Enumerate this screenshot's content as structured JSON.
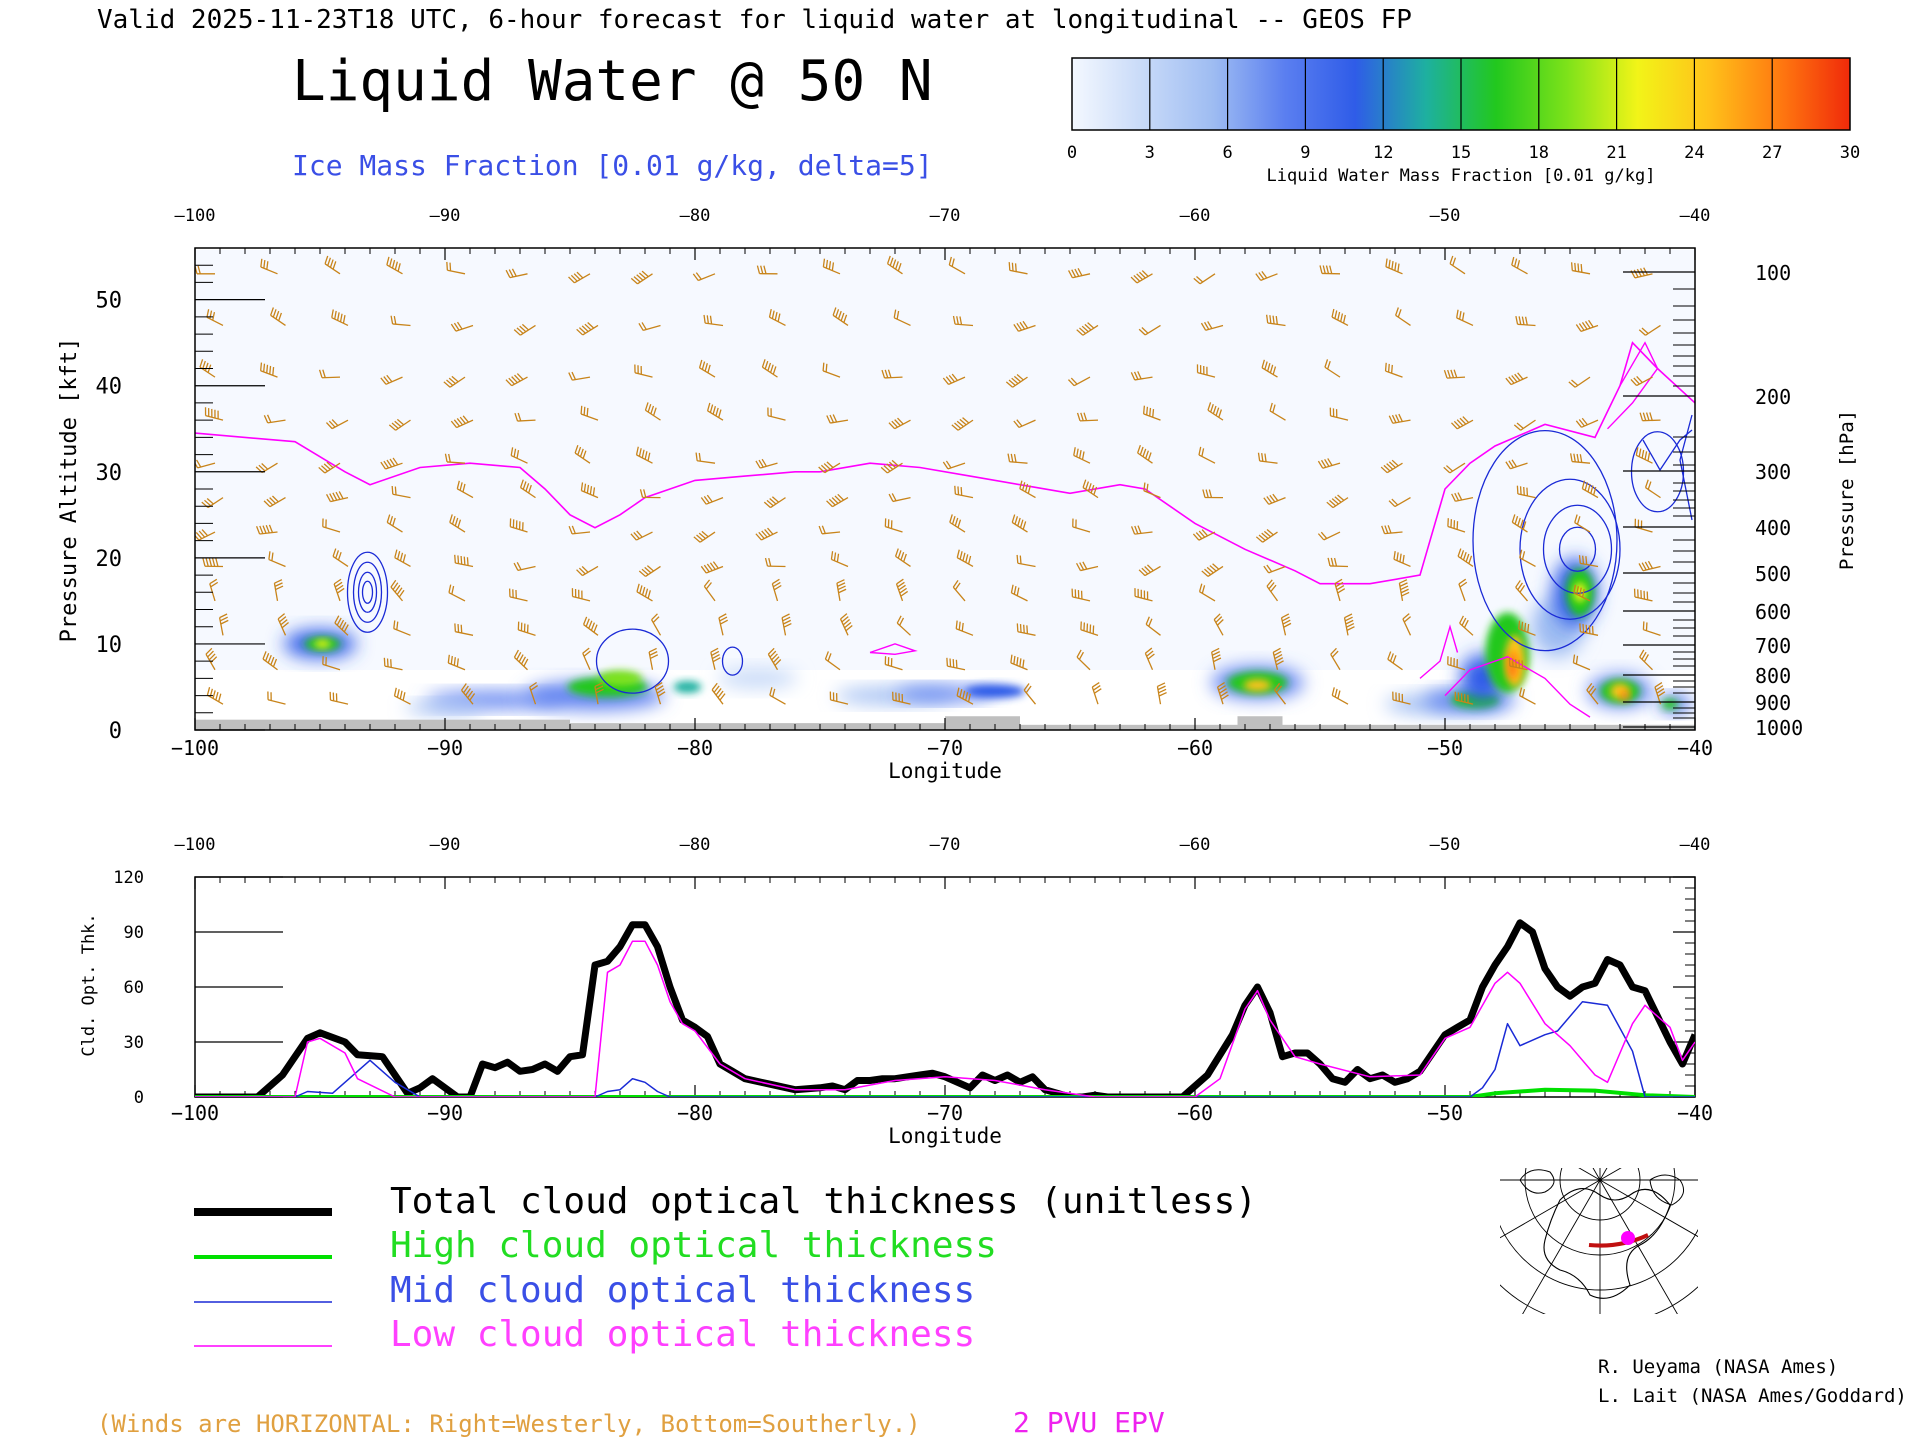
{
  "header": {
    "valid_line": "Valid 2025-11-23T18 UTC, 6-hour forecast for liquid water at longitudinal -- GEOS FP",
    "title": "Liquid Water @ 50 N",
    "subtitle": "Ice Mass Fraction [0.01 g/kg, delta=5]"
  },
  "colorbar": {
    "label": "Liquid Water Mass Fraction [0.01 g/kg]",
    "ticks": [
      "0",
      "3",
      "6",
      "9",
      "12",
      "15",
      "18",
      "21",
      "24",
      "27",
      "30"
    ],
    "colors": [
      "#f4f8ff",
      "#c8daf8",
      "#9ebcf2",
      "#5b7ff0",
      "#2f5ce8",
      "#1eb0a0",
      "#22c81e",
      "#7de21a",
      "#f2f418",
      "#ffc21a",
      "#ff7a10",
      "#f02a0a"
    ]
  },
  "top_chart": {
    "xlabel": "Longitude",
    "ylabel_left": "Pressure Altitude [kft]",
    "ylabel_right": "Pressure [hPa]",
    "x_ticks": [
      "−100",
      "−90",
      "−80",
      "−70",
      "−60",
      "−50",
      "−40"
    ],
    "y_ticks": [
      "0",
      "10",
      "20",
      "30",
      "40",
      "50"
    ],
    "pressure_ticks": [
      "100",
      "200",
      "300",
      "400",
      "500",
      "600",
      "700",
      "800",
      "900",
      "1000"
    ],
    "x_range": [
      -100,
      -40
    ],
    "y_range": [
      0,
      56
    ],
    "terrain_color": "#bfbfbf",
    "epv_color": "#ff00ff",
    "ice_color": "#1a2ad6",
    "barb_color": "#c8841a"
  },
  "bottom_chart": {
    "xlabel": "Longitude",
    "ylabel": "Cld. Opt. Thk.",
    "x_ticks": [
      "−100",
      "−90",
      "−80",
      "−70",
      "−60",
      "−50",
      "−40"
    ],
    "y_ticks": [
      "0",
      "30",
      "60",
      "90",
      "120"
    ],
    "x_range": [
      -100,
      -40
    ],
    "y_range": [
      0,
      120
    ]
  },
  "chart_data": {
    "type": "line",
    "xlabel": "Longitude",
    "ylabel": "Cld. Opt. Thk.",
    "xlim": [
      -100,
      -40
    ],
    "ylim": [
      0,
      120
    ],
    "series": [
      {
        "name": "Total cloud optical thickness (unitless)",
        "color": "#000000",
        "points": [
          [
            -100,
            0
          ],
          [
            -97.5,
            0
          ],
          [
            -96.5,
            12
          ],
          [
            -95.5,
            32
          ],
          [
            -95,
            35
          ],
          [
            -94,
            30
          ],
          [
            -93.5,
            23
          ],
          [
            -92.5,
            22
          ],
          [
            -92,
            12
          ],
          [
            -91.5,
            2
          ],
          [
            -91,
            5
          ],
          [
            -90.5,
            10
          ],
          [
            -90,
            5
          ],
          [
            -89.5,
            0
          ],
          [
            -89,
            0
          ],
          [
            -88.5,
            18
          ],
          [
            -88,
            16
          ],
          [
            -87.5,
            19
          ],
          [
            -87,
            14
          ],
          [
            -86.5,
            15
          ],
          [
            -86,
            18
          ],
          [
            -85.5,
            14
          ],
          [
            -85,
            22
          ],
          [
            -84.5,
            23
          ],
          [
            -84,
            72
          ],
          [
            -83.5,
            74
          ],
          [
            -83,
            82
          ],
          [
            -82.5,
            94
          ],
          [
            -82,
            94
          ],
          [
            -81.5,
            82
          ],
          [
            -81,
            60
          ],
          [
            -80.5,
            42
          ],
          [
            -80,
            38
          ],
          [
            -79.5,
            33
          ],
          [
            -79,
            18
          ],
          [
            -78.5,
            14
          ],
          [
            -78,
            10
          ],
          [
            -77,
            7
          ],
          [
            -76,
            4
          ],
          [
            -75,
            5
          ],
          [
            -74.5,
            6
          ],
          [
            -74,
            4
          ],
          [
            -73.5,
            9
          ],
          [
            -73,
            9
          ],
          [
            -72.5,
            10
          ],
          [
            -72,
            10
          ],
          [
            -71.5,
            11
          ],
          [
            -71,
            12
          ],
          [
            -70.5,
            13
          ],
          [
            -70,
            11
          ],
          [
            -69.5,
            8
          ],
          [
            -69,
            5
          ],
          [
            -68.5,
            12
          ],
          [
            -68,
            9
          ],
          [
            -67.5,
            12
          ],
          [
            -67,
            8
          ],
          [
            -66.5,
            11
          ],
          [
            -66,
            4
          ],
          [
            -65,
            0
          ],
          [
            -64.5,
            0
          ],
          [
            -64,
            1
          ],
          [
            -63.5,
            0
          ],
          [
            -60.5,
            0
          ],
          [
            -59.5,
            12
          ],
          [
            -58.5,
            34
          ],
          [
            -58,
            50
          ],
          [
            -57.5,
            60
          ],
          [
            -57,
            46
          ],
          [
            -56.5,
            22
          ],
          [
            -56,
            24
          ],
          [
            -55.5,
            24
          ],
          [
            -55,
            18
          ],
          [
            -54.5,
            10
          ],
          [
            -54,
            8
          ],
          [
            -53.5,
            15
          ],
          [
            -53,
            10
          ],
          [
            -52.5,
            12
          ],
          [
            -52,
            8
          ],
          [
            -51.5,
            10
          ],
          [
            -51,
            14
          ],
          [
            -50.5,
            24
          ],
          [
            -50,
            34
          ],
          [
            -49.5,
            38
          ],
          [
            -49,
            42
          ],
          [
            -48.5,
            60
          ],
          [
            -48,
            72
          ],
          [
            -47.5,
            82
          ],
          [
            -47,
            95
          ],
          [
            -46.5,
            90
          ],
          [
            -46,
            70
          ],
          [
            -45.5,
            60
          ],
          [
            -45,
            55
          ],
          [
            -44.5,
            60
          ],
          [
            -44,
            62
          ],
          [
            -43.5,
            75
          ],
          [
            -43,
            72
          ],
          [
            -42.5,
            60
          ],
          [
            -42,
            58
          ],
          [
            -41.5,
            44
          ],
          [
            -41,
            30
          ],
          [
            -40.5,
            18
          ],
          [
            -40,
            34
          ]
        ]
      },
      {
        "name": "High cloud optical thickness",
        "color": "#00e000",
        "points": [
          [
            -100,
            0
          ],
          [
            -49,
            0
          ],
          [
            -48,
            2
          ],
          [
            -47,
            3
          ],
          [
            -46,
            4
          ],
          [
            -44,
            3.5
          ],
          [
            -42,
            1
          ],
          [
            -40,
            0
          ]
        ]
      },
      {
        "name": "Mid cloud optical thickness",
        "color": "#1a2ad6",
        "points": [
          [
            -100,
            0
          ],
          [
            -96,
            0
          ],
          [
            -95.5,
            3
          ],
          [
            -94.5,
            2
          ],
          [
            -93,
            20
          ],
          [
            -92,
            8
          ],
          [
            -91,
            0
          ],
          [
            -84,
            0
          ],
          [
            -83.5,
            3
          ],
          [
            -83,
            4
          ],
          [
            -82.5,
            10
          ],
          [
            -82,
            8
          ],
          [
            -81.5,
            3
          ],
          [
            -81,
            0
          ],
          [
            -49,
            0
          ],
          [
            -48.5,
            5
          ],
          [
            -48,
            15
          ],
          [
            -47.5,
            40
          ],
          [
            -47,
            28
          ],
          [
            -46,
            34
          ],
          [
            -45.5,
            36
          ],
          [
            -44.5,
            52
          ],
          [
            -43.5,
            50
          ],
          [
            -42.5,
            25
          ],
          [
            -42,
            0
          ],
          [
            -40,
            0
          ]
        ]
      },
      {
        "name": "Low cloud optical thickness",
        "color": "#ff00ff",
        "points": [
          [
            -100,
            0
          ],
          [
            -96,
            0
          ],
          [
            -95.5,
            30
          ],
          [
            -95,
            32
          ],
          [
            -94,
            24
          ],
          [
            -93.5,
            10
          ],
          [
            -92,
            0
          ],
          [
            -84,
            0
          ],
          [
            -83.5,
            68
          ],
          [
            -83,
            72
          ],
          [
            -82.5,
            85
          ],
          [
            -82,
            85
          ],
          [
            -81.5,
            72
          ],
          [
            -81,
            52
          ],
          [
            -80.5,
            40
          ],
          [
            -80,
            36
          ],
          [
            -79,
            18
          ],
          [
            -78,
            10
          ],
          [
            -76,
            4
          ],
          [
            -74,
            4
          ],
          [
            -72,
            9
          ],
          [
            -70,
            11
          ],
          [
            -68,
            9
          ],
          [
            -66,
            4
          ],
          [
            -64,
            0
          ],
          [
            -60,
            0
          ],
          [
            -59,
            10
          ],
          [
            -58,
            48
          ],
          [
            -57.5,
            58
          ],
          [
            -57,
            42
          ],
          [
            -56,
            22
          ],
          [
            -55,
            18
          ],
          [
            -53,
            11
          ],
          [
            -51,
            12
          ],
          [
            -50,
            32
          ],
          [
            -49,
            38
          ],
          [
            -48,
            62
          ],
          [
            -47.5,
            68
          ],
          [
            -47,
            62
          ],
          [
            -46,
            40
          ],
          [
            -45,
            28
          ],
          [
            -44,
            12
          ],
          [
            -43.5,
            8
          ],
          [
            -43,
            24
          ],
          [
            -42.5,
            40
          ],
          [
            -42,
            50
          ],
          [
            -41,
            38
          ],
          [
            -40.5,
            20
          ],
          [
            -40,
            30
          ]
        ]
      }
    ]
  },
  "legend": {
    "items": [
      {
        "label": "Total cloud optical thickness (unitless)",
        "color": "#000000",
        "width": 7
      },
      {
        "label": "High cloud optical thickness",
        "color": "#00e000",
        "width": 4
      },
      {
        "label": "Mid cloud optical thickness",
        "color": "#1a2ad6",
        "width": 1.5
      },
      {
        "label": "Low cloud optical thickness",
        "color": "#ff00ff",
        "width": 1.5
      }
    ]
  },
  "footer": {
    "winds_note": "(Winds are HORIZONTAL: Right=Westerly, Bottom=Southerly.)",
    "epv_label": "2 PVU EPV",
    "credit_1": "R. Ueyama (NASA Ames)",
    "credit_2": "L. Lait (NASA Ames/Goddard)"
  }
}
